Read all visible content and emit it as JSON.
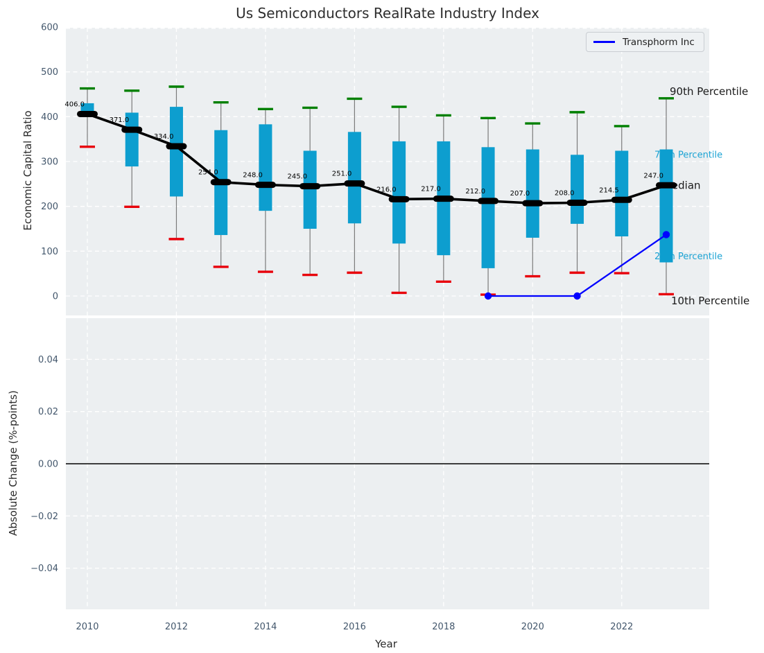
{
  "title": "Us Semiconductors RealRate Industry Index",
  "legend": {
    "label": "Transphorm Inc"
  },
  "colors": {
    "panel_bg": "#eceff1",
    "grid": "#ffffff",
    "tick_label": "#42566b",
    "box_fill": "#0d9ecf",
    "whisker": "#7a7a7a",
    "cap_high": "#008000",
    "cap_low": "#e8000b",
    "median": "#000000",
    "series_line": "#0000ff",
    "annotation_cyan": "#1ba3d4",
    "annotation_black": "#1a1a1a",
    "zero_line": "#000000"
  },
  "chart_data": [
    {
      "type": "boxplot",
      "title": "Us Semiconductors RealRate Industry Index",
      "ylabel": "Economic Capital Ratio",
      "ylim": [
        -43,
        600
      ],
      "yticks": [
        0,
        100,
        200,
        300,
        400,
        500,
        600
      ],
      "xticks": [
        2010,
        2012,
        2014,
        2016,
        2018,
        2020,
        2022
      ],
      "grid": true,
      "legend_position": "upper right",
      "boxes": [
        {
          "year": 2010,
          "p10": 333,
          "p25": 400,
          "median": 406,
          "p75": 430,
          "p90": 463,
          "label": "406.0"
        },
        {
          "year": 2011,
          "p10": 199,
          "p25": 289,
          "median": 371,
          "p75": 409,
          "p90": 458,
          "label": "371.0"
        },
        {
          "year": 2012,
          "p10": 127,
          "p25": 222,
          "median": 334,
          "p75": 422,
          "p90": 467,
          "label": "334.0"
        },
        {
          "year": 2013,
          "p10": 65,
          "p25": 136,
          "median": 254,
          "p75": 370,
          "p90": 432,
          "label": "254.0"
        },
        {
          "year": 2014,
          "p10": 54,
          "p25": 190,
          "median": 248,
          "p75": 383,
          "p90": 417,
          "label": "248.0"
        },
        {
          "year": 2015,
          "p10": 47,
          "p25": 150,
          "median": 245,
          "p75": 324,
          "p90": 420,
          "label": "245.0"
        },
        {
          "year": 2016,
          "p10": 52,
          "p25": 162,
          "median": 251,
          "p75": 366,
          "p90": 440,
          "label": "251.0"
        },
        {
          "year": 2017,
          "p10": 7,
          "p25": 117,
          "median": 216,
          "p75": 345,
          "p90": 422,
          "label": "216.0"
        },
        {
          "year": 2018,
          "p10": 32,
          "p25": 91,
          "median": 217,
          "p75": 345,
          "p90": 403,
          "label": "217.0"
        },
        {
          "year": 2019,
          "p10": 3,
          "p25": 62,
          "median": 212,
          "p75": 332,
          "p90": 397,
          "label": "212.0"
        },
        {
          "year": 2020,
          "p10": 44,
          "p25": 130,
          "median": 207,
          "p75": 327,
          "p90": 385,
          "label": "207.0"
        },
        {
          "year": 2021,
          "p10": 52,
          "p25": 161,
          "median": 208,
          "p75": 315,
          "p90": 410,
          "label": "208.0"
        },
        {
          "year": 2022,
          "p10": 51,
          "p25": 133,
          "median": 214.5,
          "p75": 324,
          "p90": 379,
          "label": "214.5"
        },
        {
          "year": 2023,
          "p10": 4,
          "p25": 75,
          "median": 247,
          "p75": 327,
          "p90": 441,
          "label": "247.0"
        }
      ],
      "series": [
        {
          "name": "Transphorm Inc",
          "points": [
            {
              "x": 2019,
              "y": 0
            },
            {
              "x": 2021,
              "y": 0
            },
            {
              "x": 2023,
              "y": 137
            }
          ]
        }
      ],
      "annotations": [
        {
          "text": "90th Percentile",
          "value": 456,
          "dx": 5,
          "style": "black"
        },
        {
          "text": "75th Percentile",
          "value": 316,
          "dx": -17,
          "style": "cyan"
        },
        {
          "text": "Median",
          "value": 247,
          "dx": -5,
          "style": "black"
        },
        {
          "text": "25th Percentile",
          "value": 90,
          "dx": -17,
          "style": "cyan"
        },
        {
          "text": "10th Percentile",
          "value": -11,
          "dx": 7,
          "style": "black"
        }
      ]
    },
    {
      "type": "line",
      "ylabel": "Absolute Change (%-points)",
      "xlabel": "Year",
      "ylim": [
        -0.056,
        0.056
      ],
      "yticks": [
        {
          "v": 0.04,
          "label": "0.04"
        },
        {
          "v": 0.02,
          "label": "0.02"
        },
        {
          "v": 0,
          "label": "0.00"
        },
        {
          "v": -0.02,
          "label": "−0.02"
        },
        {
          "v": -0.04,
          "label": "−0.04"
        }
      ],
      "xticks": [
        2010,
        2012,
        2014,
        2016,
        2018,
        2020,
        2022
      ],
      "zero_line": 0.0,
      "series": []
    }
  ]
}
